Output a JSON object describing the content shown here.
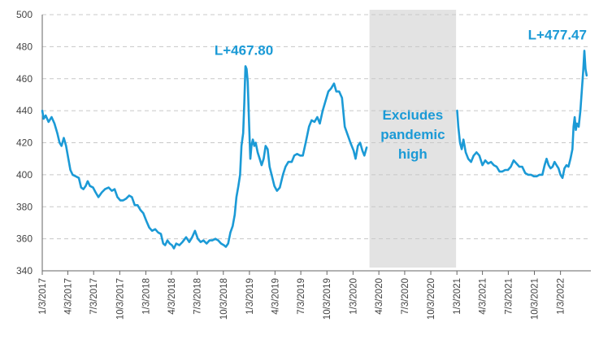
{
  "chart_data": {
    "type": "line",
    "title": "",
    "xlabel": "",
    "ylabel": "",
    "ylim": [
      340,
      500
    ],
    "yticks": [
      340,
      360,
      380,
      400,
      420,
      440,
      460,
      480,
      500
    ],
    "xlim": [
      "2017-01-03",
      "2022-04-20"
    ],
    "xticks": [
      "1/3/2017",
      "4/3/2017",
      "7/3/2017",
      "10/3/2017",
      "1/3/2018",
      "4/3/2018",
      "7/3/2018",
      "10/3/2018",
      "1/3/2019",
      "4/3/2019",
      "7/3/2019",
      "10/3/2019",
      "1/3/2020",
      "4/3/2020",
      "7/3/2020",
      "10/3/2020",
      "1/3/2021",
      "4/3/2021",
      "7/3/2021",
      "10/3/2021",
      "1/3/2022"
    ],
    "grid": true,
    "line_color": "#1b9ad6",
    "shade_color": "#e3e3e3",
    "shaded_region": {
      "start": "2020-03-01",
      "end": "2020-12-31",
      "label_lines": [
        "Excludes",
        "pandemic",
        "high"
      ]
    },
    "annotations": [
      {
        "text": "L+467.80",
        "date": "2018-12-20",
        "value": 467.8
      },
      {
        "text": "L+477.47",
        "date": "2022-03-28",
        "value": 477.47
      }
    ],
    "series": [
      {
        "segments": [
          [
            [
              "2017-01-03",
              440
            ],
            [
              "2017-01-08",
              435
            ],
            [
              "2017-01-15",
              437
            ],
            [
              "2017-01-25",
              433
            ],
            [
              "2017-02-05",
              436
            ],
            [
              "2017-02-15",
              432
            ],
            [
              "2017-02-25",
              426
            ],
            [
              "2017-03-05",
              420
            ],
            [
              "2017-03-12",
              418
            ],
            [
              "2017-03-20",
              423
            ],
            [
              "2017-03-28",
              418
            ],
            [
              "2017-04-05",
              410
            ],
            [
              "2017-04-12",
              403
            ],
            [
              "2017-04-20",
              400
            ],
            [
              "2017-05-01",
              399
            ],
            [
              "2017-05-12",
              398
            ],
            [
              "2017-05-20",
              392
            ],
            [
              "2017-05-28",
              391
            ],
            [
              "2017-06-05",
              393
            ],
            [
              "2017-06-12",
              396
            ],
            [
              "2017-06-20",
              393
            ],
            [
              "2017-07-01",
              392
            ],
            [
              "2017-07-10",
              389
            ],
            [
              "2017-07-20",
              386
            ],
            [
              "2017-08-01",
              389
            ],
            [
              "2017-08-12",
              391
            ],
            [
              "2017-08-25",
              392
            ],
            [
              "2017-09-05",
              390
            ],
            [
              "2017-09-15",
              391
            ],
            [
              "2017-09-25",
              386
            ],
            [
              "2017-10-05",
              384
            ],
            [
              "2017-10-15",
              384
            ],
            [
              "2017-10-25",
              385
            ],
            [
              "2017-11-05",
              387
            ],
            [
              "2017-11-15",
              386
            ],
            [
              "2017-11-25",
              381
            ],
            [
              "2017-12-05",
              381
            ],
            [
              "2017-12-15",
              378
            ],
            [
              "2017-12-25",
              376
            ],
            [
              "2018-01-05",
              371
            ],
            [
              "2018-01-15",
              367
            ],
            [
              "2018-01-25",
              365
            ],
            [
              "2018-02-05",
              366
            ],
            [
              "2018-02-15",
              364
            ],
            [
              "2018-02-25",
              363
            ],
            [
              "2018-03-05",
              357
            ],
            [
              "2018-03-12",
              356
            ],
            [
              "2018-03-20",
              359
            ],
            [
              "2018-03-28",
              357
            ],
            [
              "2018-04-05",
              356
            ],
            [
              "2018-04-12",
              354
            ],
            [
              "2018-04-20",
              357
            ],
            [
              "2018-05-01",
              356
            ],
            [
              "2018-05-12",
              358
            ],
            [
              "2018-05-25",
              361
            ],
            [
              "2018-06-05",
              358
            ],
            [
              "2018-06-15",
              361
            ],
            [
              "2018-06-25",
              365
            ],
            [
              "2018-07-05",
              360
            ],
            [
              "2018-07-15",
              358
            ],
            [
              "2018-07-25",
              359
            ],
            [
              "2018-08-05",
              357
            ],
            [
              "2018-08-15",
              359
            ],
            [
              "2018-08-25",
              359
            ],
            [
              "2018-09-05",
              360
            ],
            [
              "2018-09-15",
              359
            ],
            [
              "2018-09-25",
              357
            ],
            [
              "2018-10-05",
              356
            ],
            [
              "2018-10-12",
              355
            ],
            [
              "2018-10-20",
              357
            ],
            [
              "2018-10-28",
              364
            ],
            [
              "2018-11-05",
              368
            ],
            [
              "2018-11-12",
              375
            ],
            [
              "2018-11-18",
              386
            ],
            [
              "2018-11-25",
              393
            ],
            [
              "2018-12-01",
              400
            ],
            [
              "2018-12-06",
              418
            ],
            [
              "2018-12-12",
              426
            ],
            [
              "2018-12-16",
              445
            ],
            [
              "2018-12-20",
              467.8
            ],
            [
              "2018-12-24",
              466
            ],
            [
              "2018-12-28",
              458
            ],
            [
              "2019-01-02",
              430
            ],
            [
              "2019-01-06",
              410
            ],
            [
              "2019-01-10",
              418
            ],
            [
              "2019-01-15",
              422
            ],
            [
              "2019-01-20",
              418
            ],
            [
              "2019-01-25",
              420
            ],
            [
              "2019-02-01",
              414
            ],
            [
              "2019-02-08",
              410
            ],
            [
              "2019-02-15",
              406
            ],
            [
              "2019-02-22",
              410
            ],
            [
              "2019-03-01",
              418
            ],
            [
              "2019-03-08",
              416
            ],
            [
              "2019-03-15",
              405
            ],
            [
              "2019-03-22",
              400
            ],
            [
              "2019-04-01",
              393
            ],
            [
              "2019-04-10",
              390
            ],
            [
              "2019-04-20",
              392
            ],
            [
              "2019-05-01",
              400
            ],
            [
              "2019-05-10",
              405
            ],
            [
              "2019-05-20",
              408
            ],
            [
              "2019-06-01",
              408
            ],
            [
              "2019-06-10",
              412
            ],
            [
              "2019-06-20",
              413
            ],
            [
              "2019-07-01",
              412
            ],
            [
              "2019-07-10",
              412
            ],
            [
              "2019-07-20",
              420
            ],
            [
              "2019-08-01",
              430
            ],
            [
              "2019-08-10",
              434
            ],
            [
              "2019-08-20",
              433
            ],
            [
              "2019-08-30",
              436
            ],
            [
              "2019-09-08",
              432
            ],
            [
              "2019-09-18",
              440
            ],
            [
              "2019-09-28",
              446
            ],
            [
              "2019-10-08",
              452
            ],
            [
              "2019-10-18",
              454
            ],
            [
              "2019-10-28",
              457
            ],
            [
              "2019-11-05",
              452
            ],
            [
              "2019-11-15",
              452
            ],
            [
              "2019-11-25",
              448
            ],
            [
              "2019-12-05",
              430
            ],
            [
              "2019-12-15",
              425
            ],
            [
              "2019-12-25",
              420
            ],
            [
              "2020-01-05",
              415
            ],
            [
              "2020-01-12",
              410
            ],
            [
              "2020-01-20",
              418
            ],
            [
              "2020-01-28",
              420
            ],
            [
              "2020-02-05",
              415
            ],
            [
              "2020-02-12",
              412
            ],
            [
              "2020-02-20",
              417
            ]
          ],
          [
            [
              "2021-01-04",
              440
            ],
            [
              "2021-01-08",
              430
            ],
            [
              "2021-01-14",
              420
            ],
            [
              "2021-01-20",
              416
            ],
            [
              "2021-01-26",
              422
            ],
            [
              "2021-02-03",
              414
            ],
            [
              "2021-02-12",
              410
            ],
            [
              "2021-02-22",
              408
            ],
            [
              "2021-03-03",
              412
            ],
            [
              "2021-03-13",
              414
            ],
            [
              "2021-03-23",
              412
            ],
            [
              "2021-04-03",
              406
            ],
            [
              "2021-04-13",
              409
            ],
            [
              "2021-04-23",
              407
            ],
            [
              "2021-05-03",
              408
            ],
            [
              "2021-05-13",
              406
            ],
            [
              "2021-05-23",
              405
            ],
            [
              "2021-06-02",
              402
            ],
            [
              "2021-06-12",
              402
            ],
            [
              "2021-06-22",
              403
            ],
            [
              "2021-07-02",
              403
            ],
            [
              "2021-07-12",
              405
            ],
            [
              "2021-07-22",
              409
            ],
            [
              "2021-08-01",
              407
            ],
            [
              "2021-08-11",
              405
            ],
            [
              "2021-08-21",
              405
            ],
            [
              "2021-09-01",
              401
            ],
            [
              "2021-09-11",
              400
            ],
            [
              "2021-09-21",
              400
            ],
            [
              "2021-10-01",
              399
            ],
            [
              "2021-10-11",
              399
            ],
            [
              "2021-10-21",
              400
            ],
            [
              "2021-10-31",
              400
            ],
            [
              "2021-11-08",
              406
            ],
            [
              "2021-11-15",
              410
            ],
            [
              "2021-11-22",
              406
            ],
            [
              "2021-11-29",
              404
            ],
            [
              "2021-12-06",
              405
            ],
            [
              "2021-12-13",
              408
            ],
            [
              "2021-12-20",
              406
            ],
            [
              "2021-12-27",
              404
            ],
            [
              "2022-01-03",
              400
            ],
            [
              "2022-01-10",
              398
            ],
            [
              "2022-01-17",
              404
            ],
            [
              "2022-01-24",
              406
            ],
            [
              "2022-01-31",
              405
            ],
            [
              "2022-02-07",
              410
            ],
            [
              "2022-02-14",
              416
            ],
            [
              "2022-02-18",
              430
            ],
            [
              "2022-02-22",
              436
            ],
            [
              "2022-02-26",
              428
            ],
            [
              "2022-03-02",
              432
            ],
            [
              "2022-03-08",
              430
            ],
            [
              "2022-03-14",
              440
            ],
            [
              "2022-03-20",
              455
            ],
            [
              "2022-03-24",
              465
            ],
            [
              "2022-03-28",
              477.47
            ],
            [
              "2022-04-01",
              466
            ],
            [
              "2022-04-05",
              462
            ]
          ]
        ]
      }
    ]
  }
}
